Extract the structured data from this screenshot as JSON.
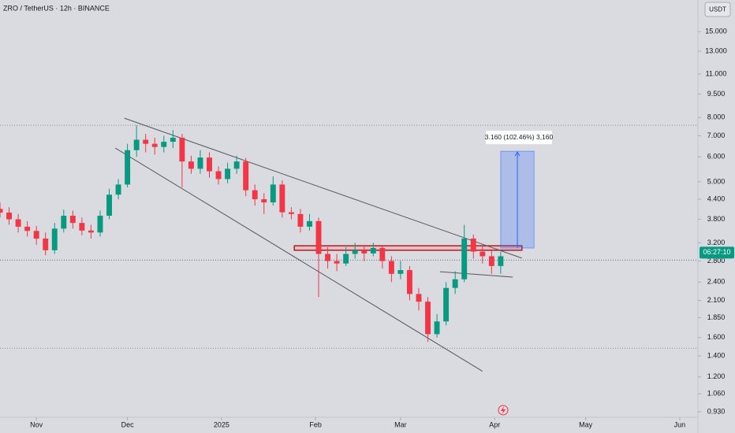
{
  "chart_data": {
    "type": "candlestick",
    "title": "ZRO / TetherUS · 12h · BINANCE",
    "currency": "USDT",
    "log_scale": true,
    "up_color": "#089981",
    "down_color": "#f23645",
    "x": [
      "2024-10-20",
      "2024-10-23",
      "2024-10-26",
      "2024-10-29",
      "2024-11-01",
      "2024-11-04",
      "2024-11-07",
      "2024-11-10",
      "2024-11-13",
      "2024-11-16",
      "2024-11-19",
      "2024-11-22",
      "2024-11-25",
      "2024-11-28",
      "2024-12-01",
      "2024-12-04",
      "2024-12-07",
      "2024-12-10",
      "2024-12-13",
      "2024-12-16",
      "2024-12-19",
      "2024-12-22",
      "2024-12-25",
      "2024-12-28",
      "2024-12-31",
      "2025-01-03",
      "2025-01-06",
      "2025-01-09",
      "2025-01-12",
      "2025-01-15",
      "2025-01-18",
      "2025-01-21",
      "2025-01-24",
      "2025-01-27",
      "2025-01-30",
      "2025-02-02",
      "2025-02-05",
      "2025-02-08",
      "2025-02-11",
      "2025-02-14",
      "2025-02-17",
      "2025-02-20",
      "2025-02-23",
      "2025-02-26",
      "2025-03-01",
      "2025-03-04",
      "2025-03-07",
      "2025-03-10",
      "2025-03-13",
      "2025-03-16",
      "2025-03-19",
      "2025-03-22",
      "2025-03-25",
      "2025-03-28",
      "2025-03-31",
      "2025-04-03"
    ],
    "open": [
      4.1,
      3.99,
      3.8,
      3.6,
      3.49,
      3.3,
      3.03,
      3.55,
      3.9,
      3.7,
      3.5,
      3.45,
      3.9,
      4.55,
      4.9,
      6.3,
      6.8,
      6.6,
      6.45,
      6.7,
      6.9,
      5.8,
      5.5,
      5.97,
      5.4,
      5.1,
      5.5,
      5.8,
      4.7,
      4.4,
      4.3,
      4.9,
      4.0,
      3.95,
      3.6,
      3.75,
      2.95,
      2.8,
      2.75,
      2.95,
      3.03,
      2.96,
      3.08,
      2.8,
      2.55,
      2.62,
      2.2,
      2.08,
      1.64,
      1.8,
      2.3,
      2.45,
      3.3,
      3.0,
      2.9,
      2.7
    ],
    "high": [
      4.3,
      4.15,
      3.95,
      3.75,
      3.62,
      3.45,
      3.7,
      4.08,
      4.05,
      3.85,
      3.65,
      4.05,
      4.75,
      5.1,
      6.6,
      7.55,
      7.1,
      6.9,
      7.0,
      7.3,
      7.1,
      6.05,
      6.3,
      6.2,
      5.6,
      5.75,
      6.05,
      5.95,
      4.9,
      4.6,
      5.2,
      5.05,
      4.15,
      4.1,
      3.95,
      3.85,
      3.1,
      2.95,
      3.1,
      3.2,
      3.15,
      3.2,
      3.15,
      2.9,
      2.8,
      2.7,
      2.3,
      2.15,
      1.9,
      2.4,
      2.6,
      3.65,
      3.4,
      3.15,
      3.05,
      3.0
    ],
    "low": [
      3.85,
      3.65,
      3.45,
      3.35,
      3.15,
      2.92,
      2.95,
      3.45,
      3.55,
      3.38,
      3.3,
      3.35,
      3.8,
      4.4,
      4.8,
      6.0,
      6.2,
      6.1,
      6.2,
      6.4,
      4.8,
      5.3,
      5.3,
      5.15,
      4.9,
      4.95,
      5.3,
      4.5,
      4.2,
      3.95,
      4.2,
      3.85,
      3.8,
      3.45,
      3.5,
      2.15,
      2.65,
      2.6,
      2.7,
      2.85,
      2.8,
      2.9,
      2.65,
      2.4,
      2.45,
      2.1,
      1.95,
      1.55,
      1.6,
      1.75,
      2.2,
      2.4,
      2.85,
      2.75,
      2.55,
      2.55
    ],
    "close": [
      3.99,
      3.8,
      3.6,
      3.49,
      3.3,
      3.03,
      3.55,
      3.9,
      3.7,
      3.5,
      3.45,
      3.9,
      4.55,
      4.9,
      6.3,
      6.8,
      6.6,
      6.45,
      6.7,
      6.9,
      5.8,
      5.5,
      5.97,
      5.4,
      5.1,
      5.5,
      5.8,
      4.7,
      4.4,
      4.3,
      4.9,
      4.0,
      3.95,
      3.6,
      3.75,
      2.95,
      2.8,
      2.75,
      2.95,
      3.03,
      2.96,
      3.08,
      2.8,
      2.55,
      2.62,
      2.2,
      2.08,
      1.64,
      1.8,
      2.3,
      2.45,
      3.3,
      3.0,
      2.9,
      2.7,
      2.9
    ],
    "xlim": [
      "2024-10-20",
      "2025-06-07"
    ],
    "xticks": [
      {
        "value": "2024-11-01",
        "label": "Nov"
      },
      {
        "value": "2024-12-01",
        "label": "Dec"
      },
      {
        "value": "2025-01-01",
        "label": "2025"
      },
      {
        "value": "2025-02-01",
        "label": "Feb"
      },
      {
        "value": "2025-03-01",
        "label": "Mar"
      },
      {
        "value": "2025-04-01",
        "label": "Apr"
      },
      {
        "value": "2025-05-01",
        "label": "May"
      },
      {
        "value": "2025-06-01",
        "label": "Jun"
      }
    ],
    "ylim": [
      0.893,
      18.9
    ],
    "yticks": [
      {
        "value": 15,
        "label": "15.000"
      },
      {
        "value": 13,
        "label": "13.000"
      },
      {
        "value": 11,
        "label": "11.000"
      },
      {
        "value": 9.5,
        "label": "9.500"
      },
      {
        "value": 8,
        "label": "8.000"
      },
      {
        "value": 7,
        "label": "7.000"
      },
      {
        "value": 6,
        "label": "6.000"
      },
      {
        "value": 5,
        "label": "5.000"
      },
      {
        "value": 4.4,
        "label": "4.400"
      },
      {
        "value": 3.8,
        "label": "3.800"
      },
      {
        "value": 3.2,
        "label": "3.200"
      },
      {
        "value": 2.8,
        "label": "2.800"
      },
      {
        "value": 2.4,
        "label": "2.400"
      },
      {
        "value": 2.1,
        "label": "2.100"
      },
      {
        "value": 1.85,
        "label": "1.850"
      },
      {
        "value": 1.6,
        "label": "1.600"
      },
      {
        "value": 1.4,
        "label": "1.400"
      },
      {
        "value": 1.2,
        "label": "1.200"
      },
      {
        "value": 1.06,
        "label": "1.060"
      },
      {
        "value": 0.93,
        "label": "0.930"
      }
    ],
    "price_lines": [
      7.56,
      1.48
    ],
    "current_price": 2.82,
    "countdown": "06:27:10",
    "trend_lines": [
      {
        "x": [
          "2024-11-30",
          "2025-04-10"
        ],
        "y": [
          7.96,
          2.86
        ]
      },
      {
        "x": [
          "2024-11-27",
          "2025-03-28"
        ],
        "y": [
          6.4,
          1.25
        ]
      },
      {
        "x": [
          "2025-03-14",
          "2025-04-07"
        ],
        "y": [
          2.59,
          2.49
        ]
      }
    ],
    "zone": {
      "x": [
        "2025-01-25",
        "2025-04-10"
      ],
      "y": [
        3.13,
        3.03
      ]
    },
    "position": {
      "x": [
        "2025-04-03",
        "2025-04-14"
      ],
      "y": [
        6.25,
        3.08
      ],
      "label": "3.160 (102.46%) 3,160"
    }
  }
}
